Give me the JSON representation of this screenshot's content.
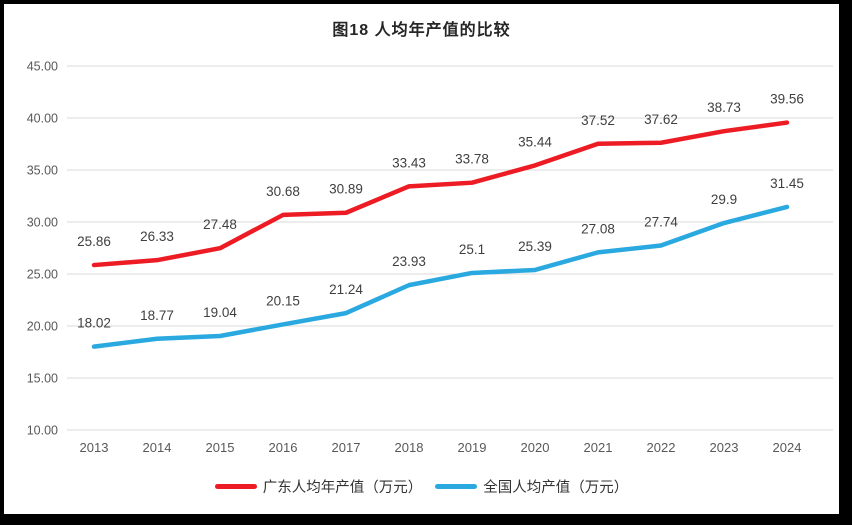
{
  "chart_data": {
    "type": "line",
    "title": "图18 人均年产值的比较",
    "categories": [
      "2013",
      "2014",
      "2015",
      "2016",
      "2017",
      "2018",
      "2019",
      "2020",
      "2021",
      "2022",
      "2023",
      "2024"
    ],
    "series": [
      {
        "name": "广东人均年产值（万元）",
        "color": "#ED1C24",
        "values": [
          25.86,
          26.33,
          27.48,
          30.68,
          30.89,
          33.43,
          33.78,
          35.44,
          37.52,
          37.62,
          38.73,
          39.56
        ],
        "labels": [
          "25.86",
          "26.33",
          "27.48",
          "30.68",
          "30.89",
          "33.43",
          "33.78",
          "35.44",
          "37.52",
          "37.62",
          "38.73",
          "39.56"
        ]
      },
      {
        "name": "全国人均产值（万元）",
        "color": "#2AA9E0",
        "values": [
          18.02,
          18.77,
          19.04,
          20.15,
          21.24,
          23.93,
          25.1,
          25.39,
          27.08,
          27.74,
          29.9,
          31.45
        ],
        "labels": [
          "18.02",
          "18.77",
          "19.04",
          "20.15",
          "21.24",
          "23.93",
          "25.1",
          "25.39",
          "27.08",
          "27.74",
          "29.9",
          "31.45"
        ]
      }
    ],
    "y_axis": {
      "min": 10,
      "max": 45,
      "step": 5,
      "tick_values": [
        45,
        40,
        35,
        30,
        25,
        20,
        15,
        10
      ],
      "tick_labels": [
        "45.00",
        "40.00",
        "35.00",
        "30.00",
        "25.00",
        "20.00",
        "15.00",
        "10.00"
      ]
    },
    "grid": true,
    "legend_position": "bottom",
    "colors": {
      "grid": "#D9D9D9",
      "axis_text": "#595959",
      "data_label_text": "#3F3F3F",
      "title_text": "#262626",
      "background": "#FFFFFF",
      "frame": "#000000"
    }
  }
}
